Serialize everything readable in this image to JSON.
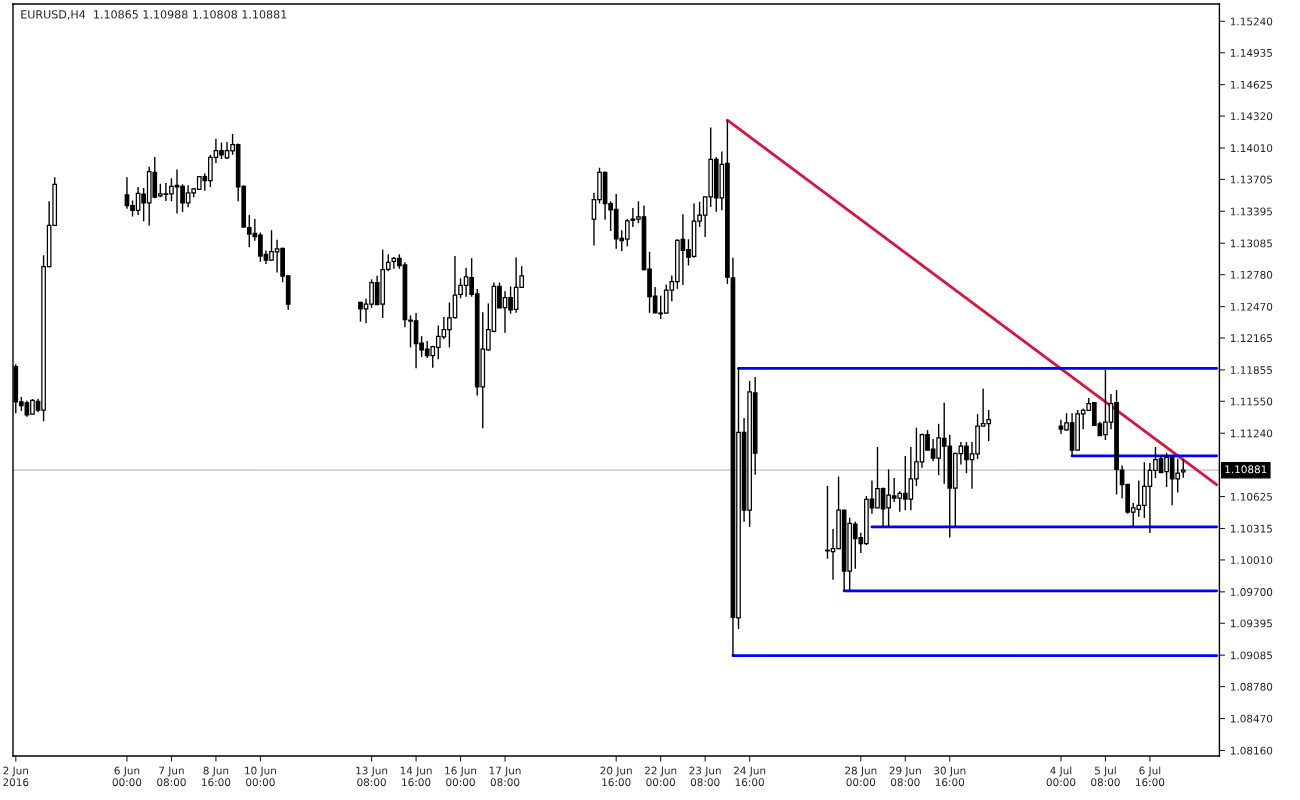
{
  "chart_data": {
    "type": "candlestick",
    "title": "EURUSD,H4  1.10865 1.10988 1.10808 1.10881",
    "color": "#000000",
    "x": [
      "2016-06-02T16:00",
      "2016-06-02T20:00",
      "2016-06-03T00:00",
      "2016-06-03T04:00",
      "2016-06-03T08:00",
      "2016-06-03T12:00",
      "2016-06-03T16:00",
      "2016-06-03T20:00",
      "2016-06-06T00:00",
      "2016-06-06T04:00",
      "2016-06-06T08:00",
      "2016-06-06T12:00",
      "2016-06-06T16:00",
      "2016-06-06T20:00",
      "2016-06-07T00:00",
      "2016-06-07T04:00",
      "2016-06-07T08:00",
      "2016-06-07T12:00",
      "2016-06-07T16:00",
      "2016-06-07T20:00",
      "2016-06-08T00:00",
      "2016-06-08T04:00",
      "2016-06-08T08:00",
      "2016-06-08T12:00",
      "2016-06-08T16:00",
      "2016-06-08T20:00",
      "2016-06-09T00:00",
      "2016-06-09T04:00",
      "2016-06-09T08:00",
      "2016-06-09T12:00",
      "2016-06-09T16:00",
      "2016-06-09T20:00",
      "2016-06-10T00:00",
      "2016-06-10T04:00",
      "2016-06-10T08:00",
      "2016-06-10T12:00",
      "2016-06-10T16:00",
      "2016-06-10T20:00",
      "2016-06-13T00:00",
      "2016-06-13T04:00",
      "2016-06-13T08:00",
      "2016-06-13T12:00",
      "2016-06-13T16:00",
      "2016-06-13T20:00",
      "2016-06-14T00:00",
      "2016-06-14T04:00",
      "2016-06-14T08:00",
      "2016-06-14T12:00",
      "2016-06-14T16:00",
      "2016-06-14T20:00",
      "2016-06-15T00:00",
      "2016-06-15T04:00",
      "2016-06-15T08:00",
      "2016-06-15T12:00",
      "2016-06-15T16:00",
      "2016-06-15T20:00",
      "2016-06-16T00:00",
      "2016-06-16T04:00",
      "2016-06-16T08:00",
      "2016-06-16T12:00",
      "2016-06-16T16:00",
      "2016-06-16T20:00",
      "2016-06-17T00:00",
      "2016-06-17T04:00",
      "2016-06-17T08:00",
      "2016-06-17T12:00",
      "2016-06-17T16:00",
      "2016-06-17T20:00",
      "2016-06-20T00:00",
      "2016-06-20T04:00",
      "2016-06-20T08:00",
      "2016-06-20T12:00",
      "2016-06-20T16:00",
      "2016-06-20T20:00",
      "2016-06-21T00:00",
      "2016-06-21T04:00",
      "2016-06-21T08:00",
      "2016-06-21T12:00",
      "2016-06-21T16:00",
      "2016-06-21T20:00",
      "2016-06-22T00:00",
      "2016-06-22T04:00",
      "2016-06-22T08:00",
      "2016-06-22T12:00",
      "2016-06-22T16:00",
      "2016-06-22T20:00",
      "2016-06-23T00:00",
      "2016-06-23T04:00",
      "2016-06-23T08:00",
      "2016-06-23T12:00",
      "2016-06-23T16:00",
      "2016-06-23T20:00",
      "2016-06-24T00:00",
      "2016-06-24T04:00",
      "2016-06-24T08:00",
      "2016-06-24T12:00",
      "2016-06-24T16:00",
      "2016-06-24T20:00",
      "2016-06-27T00:00",
      "2016-06-27T04:00",
      "2016-06-27T08:00",
      "2016-06-27T12:00",
      "2016-06-27T16:00",
      "2016-06-27T20:00",
      "2016-06-28T00:00",
      "2016-06-28T04:00",
      "2016-06-28T08:00",
      "2016-06-28T12:00",
      "2016-06-28T16:00",
      "2016-06-28T20:00",
      "2016-06-29T00:00",
      "2016-06-29T04:00",
      "2016-06-29T08:00",
      "2016-06-29T12:00",
      "2016-06-29T16:00",
      "2016-06-29T20:00",
      "2016-06-30T00:00",
      "2016-06-30T04:00",
      "2016-06-30T08:00",
      "2016-06-30T12:00",
      "2016-06-30T16:00",
      "2016-06-30T20:00",
      "2016-07-01T00:00",
      "2016-07-01T04:00",
      "2016-07-01T08:00",
      "2016-07-01T12:00",
      "2016-07-01T16:00",
      "2016-07-01T20:00",
      "2016-07-04T00:00",
      "2016-07-04T04:00",
      "2016-07-04T08:00",
      "2016-07-04T12:00",
      "2016-07-04T16:00",
      "2016-07-04T20:00",
      "2016-07-05T00:00",
      "2016-07-05T04:00",
      "2016-07-05T08:00",
      "2016-07-05T12:00",
      "2016-07-05T16:00",
      "2016-07-05T20:00",
      "2016-07-06T00:00",
      "2016-07-06T04:00",
      "2016-07-06T08:00",
      "2016-07-06T12:00",
      "2016-07-06T16:00",
      "2016-07-06T20:00",
      "2016-07-07T00:00",
      "2016-07-07T04:00",
      "2016-07-07T08:00",
      "2016-07-07T12:00",
      "2016-07-07T16:00"
    ],
    "ohlc": [
      [
        1.11886,
        1.11911,
        1.11435,
        1.11544
      ],
      [
        1.11544,
        1.11591,
        1.11456,
        1.11507
      ],
      [
        1.11535,
        1.11556,
        1.114,
        1.11419
      ],
      [
        1.11425,
        1.11572,
        1.11425,
        1.11559
      ],
      [
        1.11549,
        1.11575,
        1.11444,
        1.11465
      ],
      [
        1.11465,
        1.12968,
        1.11357,
        1.12859
      ],
      [
        1.12859,
        1.13492,
        1.12853,
        1.13258
      ],
      [
        1.13258,
        1.13725,
        1.13258,
        1.13657
      ],
      [
        1.13554,
        1.13725,
        1.1342,
        1.13451
      ],
      [
        1.13451,
        1.13501,
        1.13345,
        1.13405
      ],
      [
        1.13405,
        1.13632,
        1.13358,
        1.13569
      ],
      [
        1.13563,
        1.13622,
        1.13298,
        1.13476
      ],
      [
        1.13476,
        1.13828,
        1.13258,
        1.13781
      ],
      [
        1.13772,
        1.13922,
        1.13523,
        1.13532
      ],
      [
        1.13545,
        1.13663,
        1.13532,
        1.13564
      ],
      [
        1.13564,
        1.13669,
        1.13494,
        1.1356
      ],
      [
        1.13564,
        1.13716,
        1.13492,
        1.13638
      ],
      [
        1.13648,
        1.138,
        1.13373,
        1.13632
      ],
      [
        1.13638,
        1.13657,
        1.13389,
        1.13476
      ],
      [
        1.13476,
        1.13648,
        1.13435,
        1.13573
      ],
      [
        1.13573,
        1.13622,
        1.13532,
        1.13613
      ],
      [
        1.13607,
        1.13737,
        1.13601,
        1.13732
      ],
      [
        1.13732,
        1.13763,
        1.13594,
        1.13694
      ],
      [
        1.13694,
        1.13943,
        1.13632,
        1.13919
      ],
      [
        1.13919,
        1.14099,
        1.13863,
        1.13984
      ],
      [
        1.13984,
        1.14062,
        1.13903,
        1.13943
      ],
      [
        1.13913,
        1.14068,
        1.13903,
        1.13984
      ],
      [
        1.13981,
        1.14146,
        1.13943,
        1.14043
      ],
      [
        1.14043,
        1.14053,
        1.13492,
        1.13632
      ],
      [
        1.13638,
        1.13648,
        1.13242,
        1.13242
      ],
      [
        1.13236,
        1.13358,
        1.13046,
        1.13174
      ],
      [
        1.1318,
        1.1332,
        1.13108,
        1.13148
      ],
      [
        1.13164,
        1.1319,
        1.12905,
        1.12961
      ],
      [
        1.12977,
        1.13015,
        1.12884,
        1.12921
      ],
      [
        1.12921,
        1.13211,
        1.12915,
        1.13003
      ],
      [
        1.13,
        1.13118,
        1.128,
        1.13031
      ],
      [
        1.13034,
        1.1304,
        1.12706,
        1.12765
      ],
      [
        1.12769,
        1.12775,
        1.12438,
        1.12494
      ],
      [
        1.1251,
        1.12516,
        1.12323,
        1.12447
      ],
      [
        1.12447,
        1.12547,
        1.12307,
        1.12494
      ],
      [
        1.12494,
        1.12734,
        1.12457,
        1.12703
      ],
      [
        1.12703,
        1.12769,
        1.12485,
        1.12488
      ],
      [
        1.12494,
        1.13024,
        1.1236,
        1.12828
      ],
      [
        1.12831,
        1.12977,
        1.12812,
        1.129
      ],
      [
        1.12909,
        1.12952,
        1.12837,
        1.12937
      ],
      [
        1.12937,
        1.12977,
        1.12837,
        1.12868
      ],
      [
        1.12874,
        1.129,
        1.12269,
        1.12344
      ],
      [
        1.12338,
        1.12385,
        1.12073,
        1.12329
      ],
      [
        1.12332,
        1.12407,
        1.11871,
        1.12111
      ],
      [
        1.12115,
        1.12183,
        1.1198,
        1.12049
      ],
      [
        1.12058,
        1.12136,
        1.1197,
        1.11993
      ],
      [
        1.11993,
        1.12089,
        1.11877,
        1.1208
      ],
      [
        1.12073,
        1.12285,
        1.11958,
        1.1218
      ],
      [
        1.12176,
        1.12369,
        1.12155,
        1.12245
      ],
      [
        1.12245,
        1.1251,
        1.12073,
        1.1236
      ],
      [
        1.12363,
        1.12962,
        1.12354,
        1.12582
      ],
      [
        1.12588,
        1.12744,
        1.1255,
        1.12675
      ],
      [
        1.12675,
        1.12846,
        1.12566,
        1.12759
      ],
      [
        1.1275,
        1.1294,
        1.12566,
        1.12588
      ],
      [
        1.12594,
        1.12641,
        1.11606,
        1.1169
      ],
      [
        1.1169,
        1.12416,
        1.11288,
        1.12058
      ],
      [
        1.12049,
        1.125,
        1.12042,
        1.12245
      ],
      [
        1.12229,
        1.12703,
        1.1222,
        1.12665
      ],
      [
        1.12665,
        1.12703,
        1.12457,
        1.12457
      ],
      [
        1.1246,
        1.12619,
        1.12217,
        1.12557
      ],
      [
        1.12557,
        1.12666,
        1.124,
        1.12438
      ],
      [
        1.12442,
        1.12947,
        1.1241,
        1.12656
      ],
      [
        1.12656,
        1.12862,
        1.12656,
        1.12769
      ],
      [
        1.1332,
        1.13576,
        1.13064,
        1.13508
      ],
      [
        1.13508,
        1.13819,
        1.1347,
        1.13772
      ],
      [
        1.13772,
        1.13781,
        1.13314,
        1.1347
      ],
      [
        1.1347,
        1.13492,
        1.13205,
        1.1341
      ],
      [
        1.13414,
        1.13564,
        1.13031,
        1.13127
      ],
      [
        1.13133,
        1.13211,
        1.13008,
        1.13111
      ],
      [
        1.13124,
        1.1332,
        1.13055,
        1.13302
      ],
      [
        1.1332,
        1.13426,
        1.13242,
        1.13307
      ],
      [
        1.1332,
        1.13492,
        1.13279,
        1.13342
      ],
      [
        1.13342,
        1.13451,
        1.12821,
        1.12828
      ],
      [
        1.12834,
        1.13003,
        1.1241,
        1.12566
      ],
      [
        1.12572,
        1.12659,
        1.1241,
        1.1241
      ],
      [
        1.12407,
        1.12576,
        1.12348,
        1.124
      ],
      [
        1.12407,
        1.12684,
        1.12404,
        1.12629
      ],
      [
        1.12629,
        1.12772,
        1.12521,
        1.12713
      ],
      [
        1.12713,
        1.13123,
        1.12642,
        1.13113
      ],
      [
        1.13123,
        1.13367,
        1.1268,
        1.13016
      ],
      [
        1.13022,
        1.13123,
        1.12869,
        1.1295
      ],
      [
        1.12957,
        1.13471,
        1.12944,
        1.13299
      ],
      [
        1.13299,
        1.13487,
        1.13243,
        1.13357
      ],
      [
        1.13357,
        1.13536,
        1.13146,
        1.13536
      ],
      [
        1.13536,
        1.1421,
        1.13438,
        1.139
      ],
      [
        1.139,
        1.1392,
        1.1339,
        1.13526
      ],
      [
        1.13526,
        1.13975,
        1.13406,
        1.13851
      ],
      [
        1.13861,
        1.14277,
        1.1269,
        1.12755
      ],
      [
        1.12748,
        1.12943,
        1.09078,
        1.09452
      ],
      [
        1.09447,
        1.1187,
        1.0934,
        1.11249
      ],
      [
        1.11249,
        1.11389,
        1.10381,
        1.10494
      ],
      [
        1.10494,
        1.11747,
        1.10331,
        1.11642
      ],
      [
        1.11633,
        1.11786,
        1.10836,
        1.11047
      ],
      [
        1.10104,
        1.10729,
        1.10022,
        1.10098
      ],
      [
        1.1009,
        1.10309,
        1.09817,
        1.1012
      ],
      [
        1.1012,
        1.10819,
        1.10114,
        1.10494
      ],
      [
        1.10494,
        1.10494,
        1.09714,
        1.09902
      ],
      [
        1.09902,
        1.10419,
        1.09714,
        1.10364
      ],
      [
        1.10357,
        1.10381,
        1.09925,
        1.10217
      ],
      [
        1.10227,
        1.10273,
        1.10078,
        1.10169
      ],
      [
        1.10169,
        1.1063,
        1.10153,
        1.10599
      ],
      [
        1.106,
        1.1078,
        1.10459,
        1.10516
      ],
      [
        1.10516,
        1.11107,
        1.10516,
        1.10703
      ],
      [
        1.10703,
        1.10712,
        1.10334,
        1.10506
      ],
      [
        1.10516,
        1.10889,
        1.10334,
        1.1064
      ],
      [
        1.10633,
        1.10805,
        1.10572,
        1.10609
      ],
      [
        1.10609,
        1.10677,
        1.10478,
        1.10656
      ],
      [
        1.10656,
        1.1102,
        1.10493,
        1.106
      ],
      [
        1.106,
        1.11107,
        1.10493,
        1.10796
      ],
      [
        1.10796,
        1.11294,
        1.10727,
        1.10961
      ],
      [
        1.10961,
        1.11238,
        1.10906,
        1.11226
      ],
      [
        1.11226,
        1.1127,
        1.11076,
        1.11076
      ],
      [
        1.11086,
        1.11185,
        1.10967,
        1.10998
      ],
      [
        1.10998,
        1.11332,
        1.10833,
        1.11194
      ],
      [
        1.11189,
        1.11537,
        1.10749,
        1.11114
      ],
      [
        1.11114,
        1.11226,
        1.10228,
        1.10708
      ],
      [
        1.10708,
        1.11045,
        1.10334,
        1.11045
      ],
      [
        1.11042,
        1.11154,
        1.10936,
        1.11114
      ],
      [
        1.11114,
        1.11154,
        1.10852,
        1.10983
      ],
      [
        1.10983,
        1.11154,
        1.10702,
        1.11039
      ],
      [
        1.11039,
        1.11425,
        1.10989,
        1.1131
      ],
      [
        1.1131,
        1.11675,
        1.1131,
        1.11334
      ],
      [
        1.11334,
        1.11465,
        1.11163,
        1.11372
      ],
      [
        1.1131,
        1.11372,
        1.11232,
        1.11279
      ],
      [
        1.11273,
        1.11434,
        1.11263,
        1.11341
      ],
      [
        1.11341,
        1.11434,
        1.11013,
        1.11076
      ],
      [
        1.11076,
        1.11465,
        1.11076,
        1.11428
      ],
      [
        1.11428,
        1.11481,
        1.11278,
        1.11462
      ],
      [
        1.11462,
        1.11582,
        1.11462,
        1.11528
      ],
      [
        1.11537,
        1.11544,
        1.11316,
        1.11316
      ],
      [
        1.11332,
        1.11351,
        1.11217,
        1.11217
      ],
      [
        1.11226,
        1.11855,
        1.11175,
        1.11348
      ],
      [
        1.11348,
        1.11622,
        1.11278,
        1.11528
      ],
      [
        1.11537,
        1.11659,
        1.10646,
        1.10889
      ],
      [
        1.10883,
        1.10927,
        1.10609,
        1.1074
      ],
      [
        1.10743,
        1.10743,
        1.10459,
        1.10475
      ],
      [
        1.10475,
        1.10562,
        1.10338,
        1.10516
      ],
      [
        1.105,
        1.1078,
        1.10428,
        1.1054
      ],
      [
        1.1054,
        1.10958,
        1.10416,
        1.10724
      ],
      [
        1.10724,
        1.10951,
        1.10272,
        1.1088
      ],
      [
        1.1088,
        1.11107,
        1.10805,
        1.10983
      ],
      [
        1.10992,
        1.11014,
        1.10858,
        1.10858
      ],
      [
        1.10867,
        1.11051,
        1.10717,
        1.11005
      ],
      [
        1.11005,
        1.11005,
        1.1054,
        1.10796
      ],
      [
        1.10796,
        1.10992,
        1.10665,
        1.10852
      ],
      [
        1.10865,
        1.10988,
        1.10808,
        1.10881
      ]
    ],
    "series": [
      {
        "type": "line",
        "color": "#dc143c",
        "x": [
          "2016-06-24T00:00",
          "2016-07-08T16:00"
        ],
        "values": [
          1.1428,
          1.1074
        ]
      },
      {
        "type": "line",
        "color": "#0000ff",
        "x": [
          "2016-06-24T08:00",
          "2016-07-08T16:00"
        ],
        "values": [
          1.1187,
          1.1187
        ]
      },
      {
        "type": "line",
        "color": "#0000ff",
        "x": [
          "2016-07-04T08:00",
          "2016-07-08T16:00"
        ],
        "values": [
          1.1102,
          1.1102
        ]
      },
      {
        "type": "line",
        "color": "#0000ff",
        "x": [
          "2016-06-28T08:00",
          "2016-07-08T16:00"
        ],
        "values": [
          1.1033,
          1.1033
        ]
      },
      {
        "type": "line",
        "color": "#0000ff",
        "x": [
          "2016-06-27T12:00",
          "2016-07-08T16:00"
        ],
        "values": [
          1.0971,
          1.0971
        ]
      },
      {
        "type": "line",
        "color": "#0000ff",
        "x": [
          "2016-06-24T04:00",
          "2016-07-08T16:00"
        ],
        "values": [
          1.0908,
          1.0908
        ]
      }
    ],
    "ref_lines": [
      {
        "axis": "y",
        "value": 1.10881,
        "label": "1.10881",
        "color": "#c0c0c0"
      }
    ],
    "xlim": [
      "2016-06-02T14:00",
      "2016-07-08T18:00"
    ],
    "xticks": [
      {
        "value": "2016-06-02T16:00",
        "label": "2 Jun 2016"
      },
      {
        "value": "2016-06-06T00:00",
        "label": "6 Jun 00:00"
      },
      {
        "value": "2016-06-07T08:00",
        "label": "7 Jun 08:00"
      },
      {
        "value": "2016-06-08T16:00",
        "label": "8 Jun 16:00"
      },
      {
        "value": "2016-06-10T00:00",
        "label": "10 Jun 00:00"
      },
      {
        "value": "2016-06-13T08:00",
        "label": "13 Jun 08:00"
      },
      {
        "value": "2016-06-14T16:00",
        "label": "14 Jun 16:00"
      },
      {
        "value": "2016-06-16T00:00",
        "label": "16 Jun 00:00"
      },
      {
        "value": "2016-06-17T08:00",
        "label": "17 Jun 08:00"
      },
      {
        "value": "2016-06-20T16:00",
        "label": "20 Jun 16:00"
      },
      {
        "value": "2016-06-22T00:00",
        "label": "22 Jun 00:00"
      },
      {
        "value": "2016-06-23T08:00",
        "label": "23 Jun 08:00"
      },
      {
        "value": "2016-06-24T16:00",
        "label": "24 Jun 16:00"
      },
      {
        "value": "2016-06-28T00:00",
        "label": "28 Jun 00:00"
      },
      {
        "value": "2016-06-29T08:00",
        "label": "29 Jun 08:00"
      },
      {
        "value": "2016-06-30T16:00",
        "label": "30 Jun 16:00"
      },
      {
        "value": "2016-07-04T00:00",
        "label": "4 Jul 00:00"
      },
      {
        "value": "2016-07-05T08:00",
        "label": "5 Jul 08:00"
      },
      {
        "value": "2016-07-06T16:00",
        "label": "6 Jul 16:00"
      }
    ],
    "ylim": [
      1.08106,
      1.15408
    ],
    "yticks": [
      {
        "value": 1.1524,
        "label": "1.15240"
      },
      1.14935,
      1.14625,
      {
        "value": 1.1432,
        "label": "1.14320"
      },
      {
        "value": 1.1401,
        "label": "1.14010"
      },
      1.13705,
      1.13395,
      1.13085,
      {
        "value": 1.1278,
        "label": "1.12780"
      },
      {
        "value": 1.1247,
        "label": "1.12470"
      },
      1.12165,
      1.11855,
      {
        "value": 1.1155,
        "label": "1.11550"
      },
      {
        "value": 1.1124,
        "label": "1.11240"
      },
      1.10625,
      1.10315,
      {
        "value": 1.1001,
        "label": "1.10010"
      },
      {
        "value": 1.097,
        "label": "1.09700"
      },
      1.09395,
      1.09085,
      {
        "value": 1.0878,
        "label": "1.08780"
      },
      {
        "value": 1.0847,
        "label": "1.08470"
      },
      {
        "value": 1.0816,
        "label": "1.08160"
      }
    ],
    "grid": false,
    "legend": false
  }
}
